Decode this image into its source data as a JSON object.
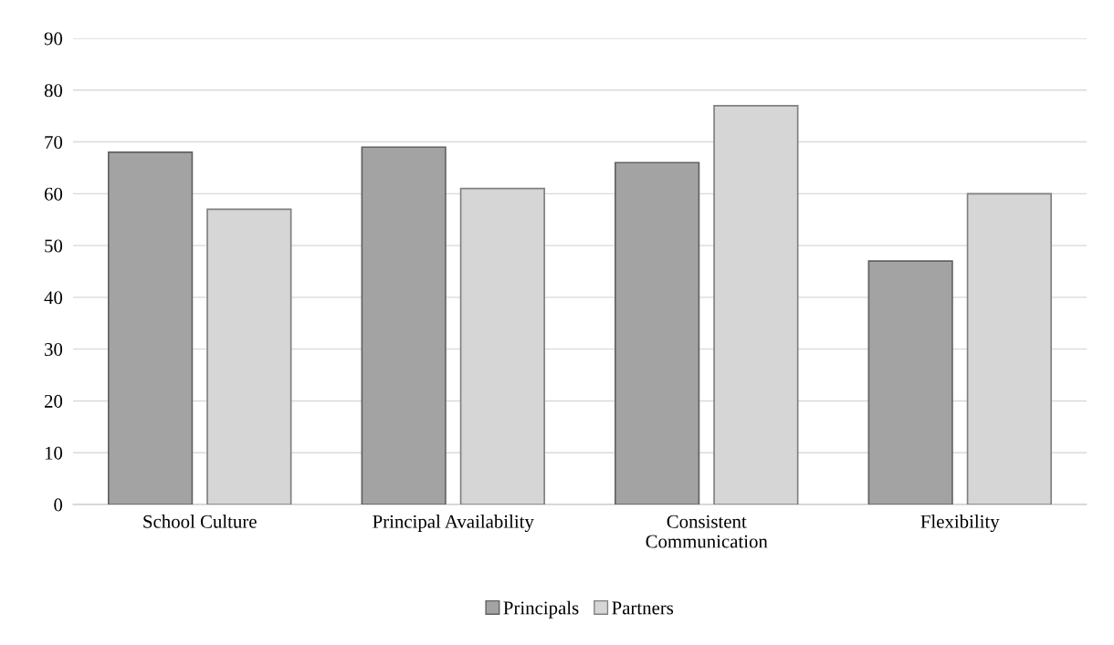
{
  "chart_data": {
    "type": "bar",
    "categories": [
      "School Culture",
      "Principal Availability",
      "Consistent Communication",
      "Flexibility"
    ],
    "series": [
      {
        "name": "Principals",
        "color": "#a3a3a3",
        "values": [
          68,
          69,
          66,
          47
        ]
      },
      {
        "name": "Partners",
        "color": "#d6d6d6",
        "values": [
          57,
          61,
          77,
          60
        ]
      }
    ],
    "ylim": [
      0,
      90
    ],
    "yticks": [
      0,
      10,
      20,
      30,
      40,
      50,
      60,
      70,
      80,
      90
    ],
    "grid": "y",
    "legend": "bottom"
  }
}
